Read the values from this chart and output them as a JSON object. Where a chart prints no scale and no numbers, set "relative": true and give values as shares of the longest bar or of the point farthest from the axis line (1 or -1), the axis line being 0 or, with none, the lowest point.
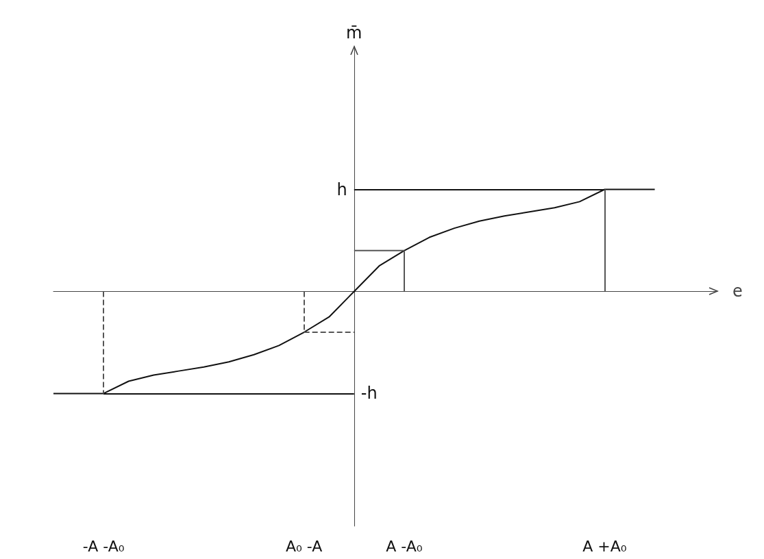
{
  "chart_data": {
    "type": "line",
    "xlabel": "e",
    "annotations": [
      "m̄"
    ],
    "marker": "none",
    "relative": true,
    "categories": [
      null,
      null,
      "-A -A₀",
      null,
      null,
      null,
      null,
      null,
      null,
      null,
      "A₀ -A",
      null,
      null,
      null,
      "A -A₀",
      null,
      null,
      null,
      null,
      null,
      null,
      null,
      "A +A₀",
      null,
      null
    ],
    "series": [
      {
        "color": "#111111",
        "values": [
          -1,
          -1,
          -1,
          -0.88,
          -0.82,
          -0.78,
          -0.74,
          -0.69,
          -0.62,
          -0.53,
          -0.4,
          -0.25,
          0,
          0.25,
          0.4,
          0.53,
          0.62,
          0.69,
          0.74,
          0.78,
          0.82,
          0.88,
          1,
          1,
          1
        ]
      },
      {
        "color": "#555555",
        "values": [
          null,
          null,
          null,
          null,
          null,
          null,
          null,
          null,
          null,
          null,
          null,
          null,
          0.4,
          0.4,
          0.4,
          null,
          null,
          null,
          null,
          null,
          null,
          null,
          null,
          null,
          null
        ]
      },
      {
        "color": "#555555",
        "line_style": "dashed",
        "values": [
          null,
          null,
          null,
          null,
          null,
          null,
          null,
          null,
          null,
          null,
          -0.4,
          -0.4,
          -0.4,
          null,
          null,
          null,
          null,
          null,
          null,
          null,
          null,
          null,
          null,
          null,
          null
        ]
      }
    ],
    "ref_lines": [
      {
        "axis": "y",
        "value": 1,
        "label": "h",
        "color": "#111111"
      },
      {
        "axis": "y",
        "value": -1,
        "label": "-h",
        "color": "#111111"
      },
      {
        "axis": "x",
        "value": "-A -A₀",
        "color": "#555555",
        "line_style": "dashed"
      },
      {
        "axis": "x",
        "value": "A₀ -A",
        "color": "#555555",
        "line_style": "dashed"
      },
      {
        "axis": "x",
        "value": "A -A₀",
        "color": "#555555"
      },
      {
        "axis": "x",
        "value": "A +A₀",
        "color": "#555555"
      }
    ]
  }
}
